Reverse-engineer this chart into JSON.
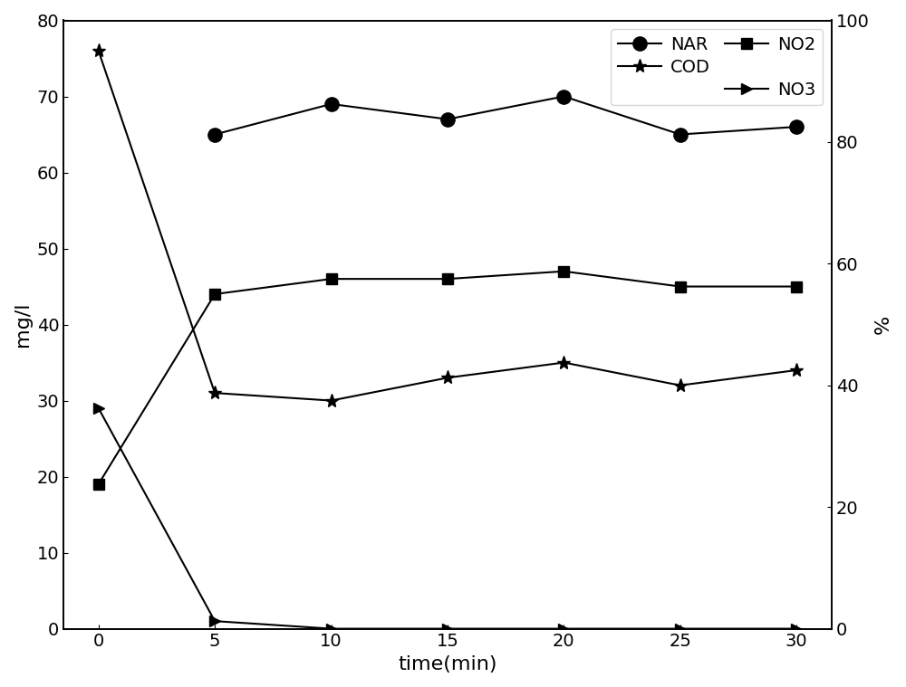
{
  "time": [
    0,
    5,
    10,
    15,
    20,
    25,
    30
  ],
  "COD": [
    76,
    31,
    30,
    33,
    35,
    32,
    34
  ],
  "NO2": [
    19,
    44,
    46,
    46,
    47,
    45,
    45
  ],
  "NO3": [
    29,
    1,
    0,
    0,
    0,
    0,
    0
  ],
  "NAR": [
    null,
    65,
    69,
    67,
    70,
    65,
    66
  ],
  "left_ylim": [
    0,
    80
  ],
  "right_ylim": [
    0,
    80
  ],
  "right_yticks": [
    0,
    20,
    40,
    60,
    80,
    100
  ],
  "right_yticklabels": [
    "0",
    "20",
    "40",
    "60",
    "80",
    "100"
  ],
  "left_yticks": [
    0,
    10,
    20,
    30,
    40,
    50,
    60,
    70,
    80
  ],
  "xticks": [
    0,
    5,
    10,
    15,
    20,
    25,
    30
  ],
  "xlabel": "time(min)",
  "ylabel_left": "mg/l",
  "ylabel_right": "%",
  "legend_COD": "COD",
  "legend_NO2": "NO2",
  "legend_NO3": "NO3",
  "legend_NAR": "NAR",
  "line_color": "#000000",
  "marker_COD": "*",
  "marker_NO2": "s",
  "marker_NO3": ">",
  "marker_NAR": "o",
  "markersize_COD": 11,
  "markersize_NO2": 9,
  "markersize_NO3": 9,
  "markersize_NAR": 11,
  "linewidth": 1.5,
  "fontsize_label": 16,
  "fontsize_tick": 14,
  "fontsize_legend": 14
}
